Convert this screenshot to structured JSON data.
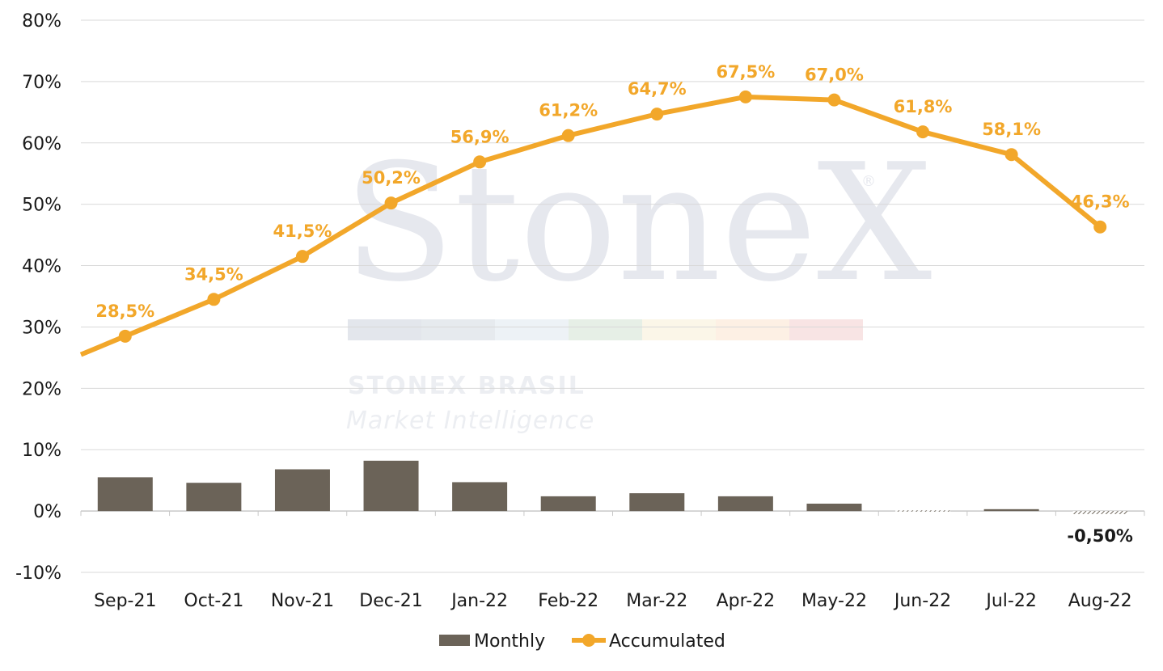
{
  "chart_data": {
    "type": "bar",
    "categories": [
      "Sep-21",
      "Oct-21",
      "Nov-21",
      "Dec-21",
      "Jan-22",
      "Feb-22",
      "Mar-22",
      "Apr-22",
      "May-22",
      "Jun-22",
      "Jul-22",
      "Aug-22"
    ],
    "series": [
      {
        "name": "Monthly",
        "type": "bar",
        "color": "#6b6358",
        "values": [
          5.5,
          4.6,
          6.8,
          8.2,
          4.7,
          2.4,
          2.9,
          2.4,
          1.2,
          0.1,
          0.3,
          -0.5
        ],
        "data_labels": [
          "",
          "",
          "",
          "",
          "",
          "",
          "",
          "",
          "",
          "",
          "",
          "-0,50%"
        ],
        "hatched_categories": [
          "Jun-22",
          "Aug-22"
        ]
      },
      {
        "name": "Accumulated",
        "type": "line",
        "color": "#f2a72a",
        "values": [
          28.5,
          34.5,
          41.5,
          50.2,
          56.9,
          61.2,
          64.7,
          67.5,
          67.0,
          61.8,
          58.1,
          46.3
        ],
        "data_labels": [
          "28,5%",
          "34,5%",
          "41,5%",
          "50,2%",
          "56,9%",
          "61,2%",
          "64,7%",
          "67,5%",
          "67,0%",
          "61,8%",
          "58,1%",
          "46,3%"
        ],
        "line_start_value": 25.5
      }
    ],
    "y_ticks": [
      "80%",
      "70%",
      "60%",
      "50%",
      "40%",
      "30%",
      "20%",
      "10%",
      "0%",
      "-10%"
    ],
    "y_tick_values": [
      80,
      70,
      60,
      50,
      40,
      30,
      20,
      10,
      0,
      -10
    ],
    "ylim": [
      -10,
      80
    ],
    "grid": true,
    "legend_position": "bottom-center",
    "title": "",
    "xlabel": "",
    "ylabel": ""
  },
  "legend": {
    "monthly_label": "Monthly",
    "accumulated_label": "Accumulated"
  },
  "watermark": {
    "logo_text": "StoneX",
    "registered_mark": "®",
    "brand_line": "STONEX BRASIL",
    "sub_line": "Market Intelligence",
    "stripe_colors": [
      "#e3e6ec",
      "#e6eaee",
      "#edf2f6",
      "#e6efe6",
      "#fbf6e8",
      "#fdf0e4",
      "#f8e4e4"
    ]
  }
}
